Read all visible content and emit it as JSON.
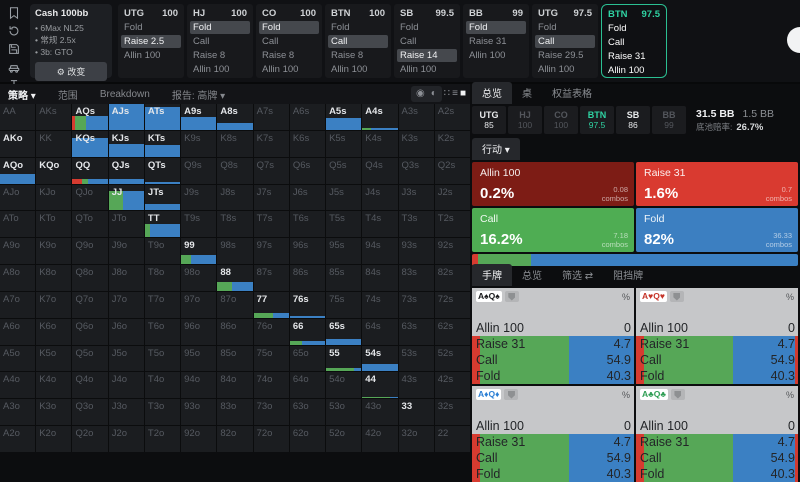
{
  "sidebar": {
    "icons": [
      "bookmark-icon",
      "history-icon",
      "save-icon",
      "car-icon",
      "ibeam-icon"
    ]
  },
  "config": {
    "title": "Cash 100bb",
    "items": [
      "6Max NL25",
      "常规 2.5x",
      "3b: GTO"
    ],
    "change_label": "改变",
    "gear_icon": "⚙"
  },
  "topbar": {
    "columns": [
      {
        "pos": "UTG",
        "stack": "100",
        "actions": [
          "Fold",
          "Raise 2.5",
          "Allin 100"
        ],
        "hl": 1,
        "selected": false
      },
      {
        "pos": "HJ",
        "stack": "100",
        "actions": [
          "Fold",
          "Call",
          "Raise 8",
          "Allin 100"
        ],
        "hl": 0,
        "selected": false
      },
      {
        "pos": "CO",
        "stack": "100",
        "actions": [
          "Fold",
          "Call",
          "Raise 8",
          "Allin 100"
        ],
        "hl": 0,
        "selected": false
      },
      {
        "pos": "BTN",
        "stack": "100",
        "actions": [
          "Fold",
          "Call",
          "Raise 8",
          "Allin 100"
        ],
        "hl": 1,
        "selected": false
      },
      {
        "pos": "SB",
        "stack": "99.5",
        "actions": [
          "Fold",
          "Call",
          "Raise 14",
          "Allin 100"
        ],
        "hl": 2,
        "selected": false
      },
      {
        "pos": "BB",
        "stack": "99",
        "actions": [
          "Fold",
          "Raise 31",
          "Allin 100"
        ],
        "hl": 0,
        "selected": false
      },
      {
        "pos": "UTG",
        "stack": "97.5",
        "actions": [
          "Fold",
          "Call",
          "Raise 29.5",
          "Allin 100"
        ],
        "hl": 1,
        "selected": false
      },
      {
        "pos": "BTN",
        "stack": "97.5",
        "actions": [
          "Fold",
          "Call",
          "Raise 31",
          "Allin 100"
        ],
        "hl": -1,
        "selected": true
      }
    ]
  },
  "matrix_toolbar": {
    "tabs": [
      "策略",
      "范围",
      "Breakdown"
    ],
    "report": "报告: 高牌",
    "caret": "▾",
    "view_icons": [
      {
        "name": "strategy-dot-icon",
        "glyph": "◉",
        "on": false,
        "group": "pill"
      },
      {
        "name": "ev-contrast-icon",
        "glyph": "◐",
        "on": false,
        "group": "pill"
      },
      {
        "name": "grid-view-icon",
        "glyph": "∷",
        "on": false,
        "group": "flat"
      },
      {
        "name": "list-view-icon",
        "glyph": "≡",
        "on": false,
        "group": "flat"
      },
      {
        "name": "square-view-icon",
        "glyph": "■",
        "on": true,
        "group": "flat"
      }
    ]
  },
  "matrix": {
    "labels": [
      [
        "AA",
        "AKs",
        "AQs",
        "AJs",
        "ATs",
        "A9s",
        "A8s",
        "A7s",
        "A6s",
        "A5s",
        "A4s",
        "A3s",
        "A2s"
      ],
      [
        "AKo",
        "KK",
        "KQs",
        "KJs",
        "KTs",
        "K9s",
        "K8s",
        "K7s",
        "K6s",
        "K5s",
        "K4s",
        "K3s",
        "K2s"
      ],
      [
        "AQo",
        "KQo",
        "QQ",
        "QJs",
        "QTs",
        "Q9s",
        "Q8s",
        "Q7s",
        "Q6s",
        "Q5s",
        "Q4s",
        "Q3s",
        "Q2s"
      ],
      [
        "AJo",
        "KJo",
        "QJo",
        "JJ",
        "JTs",
        "J9s",
        "J8s",
        "J7s",
        "J6s",
        "J5s",
        "J4s",
        "J3s",
        "J2s"
      ],
      [
        "ATo",
        "KTo",
        "QTo",
        "JTo",
        "TT",
        "T9s",
        "T8s",
        "T7s",
        "T6s",
        "T5s",
        "T4s",
        "T3s",
        "T2s"
      ],
      [
        "A9o",
        "K9o",
        "Q9o",
        "J9o",
        "T9o",
        "99",
        "98s",
        "97s",
        "96s",
        "95s",
        "94s",
        "93s",
        "92s"
      ],
      [
        "A8o",
        "K8o",
        "Q8o",
        "J8o",
        "T8o",
        "98o",
        "88",
        "87s",
        "86s",
        "85s",
        "84s",
        "83s",
        "82s"
      ],
      [
        "A7o",
        "K7o",
        "Q7o",
        "J7o",
        "T7o",
        "97o",
        "87o",
        "77",
        "76s",
        "75s",
        "74s",
        "73s",
        "72s"
      ],
      [
        "A6o",
        "K6o",
        "Q6o",
        "J6o",
        "T6o",
        "96o",
        "86o",
        "76o",
        "66",
        "65s",
        "64s",
        "63s",
        "62s"
      ],
      [
        "A5o",
        "K5o",
        "Q5o",
        "J5o",
        "T5o",
        "95o",
        "85o",
        "75o",
        "65o",
        "55",
        "54s",
        "53s",
        "52s"
      ],
      [
        "A4o",
        "K4o",
        "Q4o",
        "J4o",
        "T4o",
        "94o",
        "84o",
        "74o",
        "64o",
        "54o",
        "44",
        "43s",
        "42s"
      ],
      [
        "A3o",
        "K3o",
        "Q3o",
        "J3o",
        "T3o",
        "93o",
        "83o",
        "73o",
        "63o",
        "53o",
        "43o",
        "33",
        "32s"
      ],
      [
        "A2o",
        "K2o",
        "Q2o",
        "J2o",
        "T2o",
        "92o",
        "82o",
        "72o",
        "62o",
        "52o",
        "42o",
        "32o",
        "22"
      ]
    ],
    "bright": [
      "AQs",
      "AJs",
      "ATs",
      "A9s",
      "A8s",
      "A5s",
      "A4s",
      "AKo",
      "KQs",
      "KJs",
      "KTs",
      "AQo",
      "KQo",
      "QQ",
      "QJs",
      "QTs",
      "JJ",
      "JTs",
      "TT",
      "99",
      "88",
      "77",
      "76s",
      "66",
      "65s",
      "55",
      "54s",
      "44",
      "33"
    ],
    "bars": {
      "AQs": {
        "h": 52,
        "segs": [
          [
            "r",
            6
          ],
          [
            "g",
            32
          ],
          [
            "b",
            62
          ]
        ]
      },
      "AJs": {
        "h": 100,
        "segs": [
          [
            "b",
            100
          ]
        ]
      },
      "ATs": {
        "h": 88,
        "segs": [
          [
            "b",
            100
          ]
        ]
      },
      "A9s": {
        "h": 50,
        "segs": [
          [
            "b",
            100
          ]
        ]
      },
      "A8s": {
        "h": 28,
        "segs": [
          [
            "b",
            100
          ]
        ]
      },
      "A5s": {
        "h": 45,
        "segs": [
          [
            "b",
            100
          ]
        ]
      },
      "A4s": {
        "h": 8,
        "segs": [
          [
            "g",
            25
          ],
          [
            "b",
            75
          ]
        ]
      },
      "KQs": {
        "h": 72,
        "segs": [
          [
            "b",
            100
          ]
        ]
      },
      "KJs": {
        "h": 50,
        "segs": [
          [
            "b",
            100
          ]
        ]
      },
      "KTs": {
        "h": 45,
        "segs": [
          [
            "b",
            100
          ]
        ]
      },
      "AQo": {
        "h": 38,
        "segs": [
          [
            "b",
            100
          ]
        ]
      },
      "QQ": {
        "h": 18,
        "segs": [
          [
            "r",
            28
          ],
          [
            "g",
            16
          ],
          [
            "b",
            56
          ]
        ]
      },
      "QJs": {
        "h": 16,
        "segs": [
          [
            "b",
            100
          ]
        ]
      },
      "QTs": {
        "h": 5,
        "segs": [
          [
            "b",
            100
          ]
        ]
      },
      "JJ": {
        "h": 75,
        "segs": [
          [
            "g",
            42
          ],
          [
            "b",
            58
          ]
        ]
      },
      "JTs": {
        "h": 25,
        "segs": [
          [
            "b",
            100
          ]
        ]
      },
      "TT": {
        "h": 52,
        "segs": [
          [
            "g",
            14
          ],
          [
            "b",
            86
          ]
        ]
      },
      "99": {
        "h": 36,
        "segs": [
          [
            "g",
            27
          ],
          [
            "b",
            73
          ]
        ]
      },
      "88": {
        "h": 36,
        "segs": [
          [
            "g",
            42
          ],
          [
            "b",
            58
          ]
        ]
      },
      "77": {
        "h": 20,
        "segs": [
          [
            "g",
            55
          ],
          [
            "b",
            45
          ]
        ]
      },
      "76s": {
        "h": 7,
        "segs": [
          [
            "b",
            100
          ]
        ]
      },
      "66": {
        "h": 13,
        "segs": [
          [
            "g",
            35
          ],
          [
            "b",
            65
          ]
        ]
      },
      "65s": {
        "h": 22,
        "segs": [
          [
            "b",
            100
          ]
        ]
      },
      "55": {
        "h": 15,
        "segs": [
          [
            "g",
            78
          ],
          [
            "b",
            22
          ]
        ]
      },
      "54s": {
        "h": 28,
        "segs": [
          [
            "b",
            100
          ]
        ]
      },
      "44": {
        "h": 5,
        "segs": [
          [
            "g",
            80
          ],
          [
            "b",
            20
          ]
        ]
      }
    }
  },
  "overview": {
    "tabs": [
      {
        "label": "总览",
        "on": true
      },
      {
        "label": "桌",
        "on": false
      },
      {
        "label": "权益表格",
        "on": false
      }
    ],
    "positions": [
      {
        "pos": "UTG",
        "stack": "85",
        "state": "lit"
      },
      {
        "pos": "HJ",
        "stack": "100",
        "state": "dim"
      },
      {
        "pos": "CO",
        "stack": "100",
        "state": "dim"
      },
      {
        "pos": "BTN",
        "stack": "97.5",
        "state": "hero"
      },
      {
        "pos": "SB",
        "stack": "86",
        "state": "lit"
      },
      {
        "pos": "BB",
        "stack": "99",
        "state": "dim"
      }
    ],
    "pot": "31.5 BB",
    "bet": "1.5 BB",
    "pot_odds_label": "底池赔率:",
    "pot_odds": "26.7%",
    "action_header": "行动 ▾",
    "combos_suffix": "combos",
    "actions": [
      {
        "label": "Allin 100",
        "pct": "0.2%",
        "combos": "0.08",
        "color": "#7d1c15"
      },
      {
        "label": "Raise 31",
        "pct": "1.6%",
        "combos": "0.7",
        "color": "#d93a30"
      },
      {
        "label": "Call",
        "pct": "16.2%",
        "combos": "7.18",
        "color": "#4fad53"
      },
      {
        "label": "Fold",
        "pct": "82%",
        "combos": "36.33",
        "color": "#3c7fc1"
      }
    ],
    "strategy_bar": [
      [
        "r",
        1.8
      ],
      [
        "g",
        16.2
      ],
      [
        "b",
        82
      ]
    ]
  },
  "hands": {
    "tabs": [
      {
        "label": "手牌",
        "on": true
      },
      {
        "label": "总览",
        "on": false
      },
      {
        "label": "筛选 ⇄",
        "on": false
      },
      {
        "label": "阻挡牌",
        "on": false
      }
    ],
    "percent_symbol": "%",
    "rows": [
      {
        "label": "Allin 100",
        "value": "0"
      },
      {
        "label": "Raise 31",
        "value": "4.7"
      },
      {
        "label": "Call",
        "value": "54.9"
      },
      {
        "label": "Fold",
        "value": "40.3"
      }
    ],
    "bar": [
      [
        "r",
        4.7
      ],
      [
        "g",
        54.9
      ],
      [
        "b",
        40.3
      ]
    ],
    "cards": [
      {
        "name": "AsQs",
        "parts": [
          {
            "t": "A",
            "c": "#17181a"
          },
          {
            "t": "♠",
            "c": "#17181a"
          },
          {
            "t": "Q",
            "c": "#17181a"
          },
          {
            "t": "♠",
            "c": "#17181a"
          }
        ]
      },
      {
        "name": "AhQh",
        "parts": [
          {
            "t": "A",
            "c": "#c53429"
          },
          {
            "t": "♥",
            "c": "#c53429"
          },
          {
            "t": "Q",
            "c": "#c53429"
          },
          {
            "t": "♥",
            "c": "#c53429"
          }
        ]
      },
      {
        "name": "AdQd",
        "parts": [
          {
            "t": "A",
            "c": "#2b7fd4"
          },
          {
            "t": "♦",
            "c": "#2b7fd4"
          },
          {
            "t": "Q",
            "c": "#2b7fd4"
          },
          {
            "t": "♦",
            "c": "#2b7fd4"
          }
        ]
      },
      {
        "name": "AcQc",
        "parts": [
          {
            "t": "A",
            "c": "#2f9e54"
          },
          {
            "t": "♣",
            "c": "#2f9e54"
          },
          {
            "t": "Q",
            "c": "#2f9e54"
          },
          {
            "t": "♣",
            "c": "#2f9e54"
          }
        ]
      }
    ]
  }
}
